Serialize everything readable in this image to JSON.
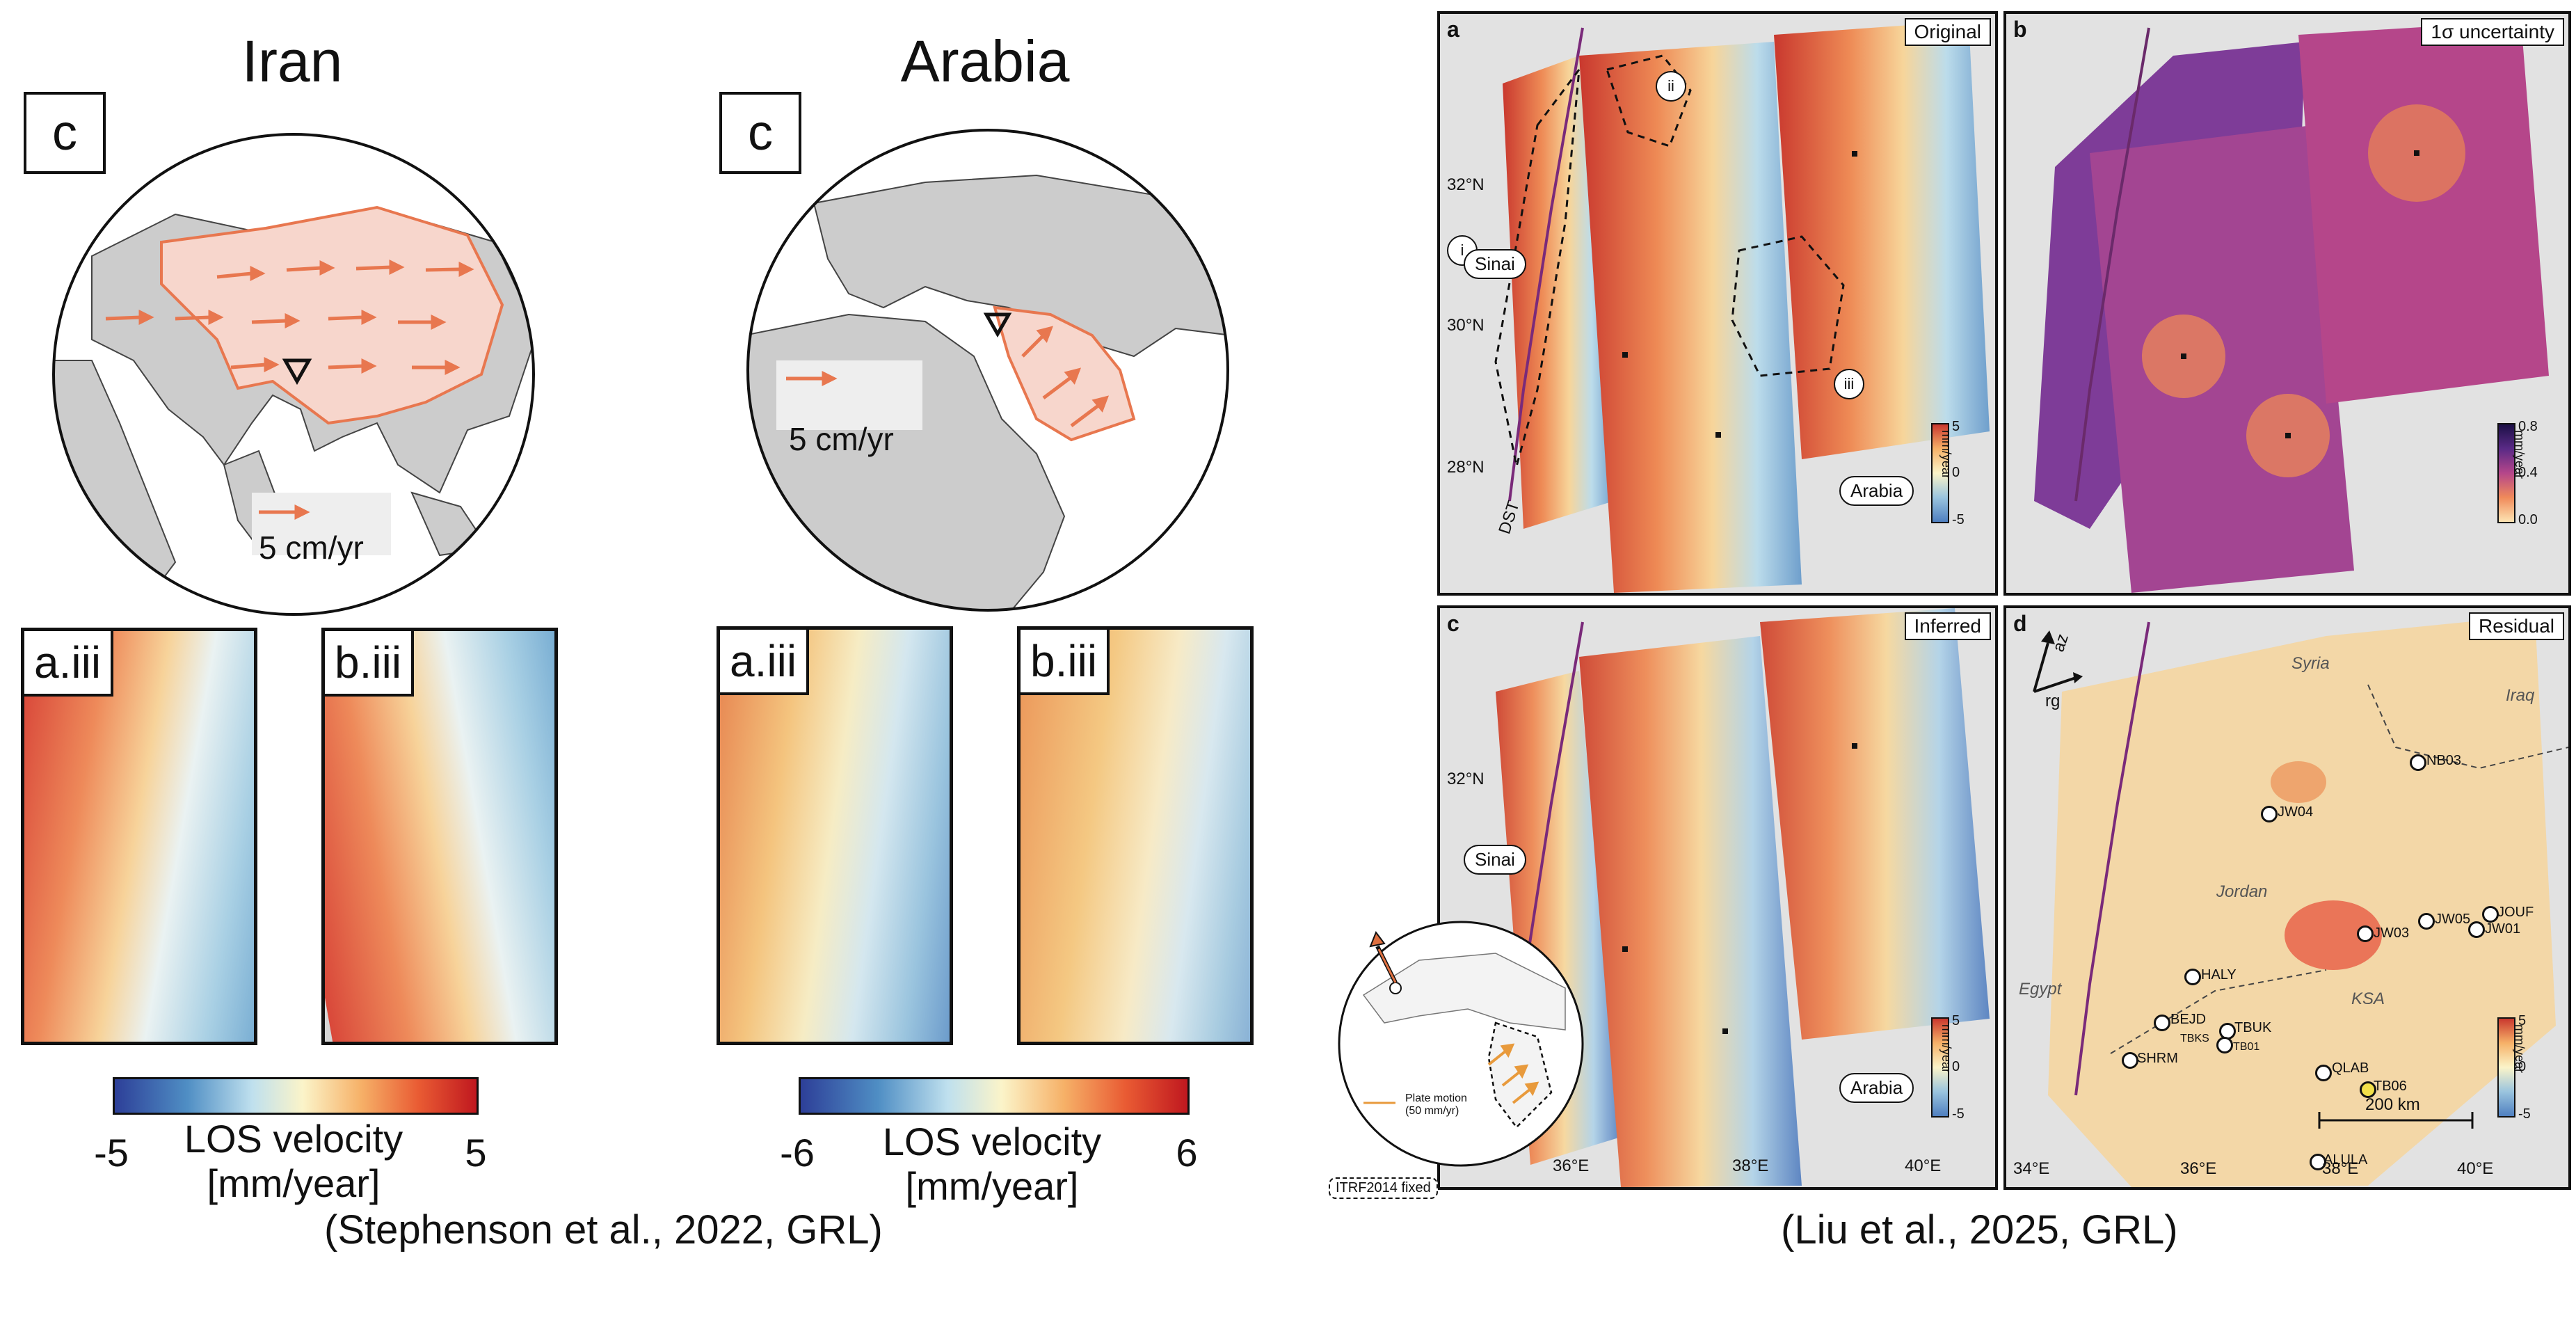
{
  "left": {
    "iran": {
      "title": "Iran",
      "panel_label": "c",
      "arrow_legend": "5 cm/yr",
      "strips": [
        "a.iii",
        "b.iii"
      ],
      "colorbar": {
        "min": "-5",
        "max": "5",
        "label_line1": "LOS velocity",
        "label_line2": "[mm/year]"
      }
    },
    "arabia": {
      "title": "Arabia",
      "panel_label": "c",
      "arrow_legend": "5 cm/yr",
      "strips": [
        "a.iii",
        "b.iii"
      ],
      "colorbar": {
        "min": "-6",
        "max": "6",
        "label_line1": "LOS velocity",
        "label_line2": "[mm/year]"
      }
    },
    "citation": "(Stephenson et al., 2022, GRL)"
  },
  "right": {
    "citation": "(Liu et al., 2025, GRL)",
    "panels": {
      "a": {
        "label": "a",
        "title": "Original",
        "lat_ticks": [
          "32°N",
          "30°N",
          "28°N"
        ],
        "markers": [
          "i",
          "ii",
          "iii"
        ],
        "pills": [
          "Sinai",
          "Arabia"
        ],
        "fault": "DST",
        "cbar": {
          "top": "5",
          "mid": "0",
          "bottom": "-5",
          "unit": "mm/year"
        }
      },
      "b": {
        "label": "b",
        "title": "1σ uncertainty",
        "cbar": {
          "top": "0.8",
          "mid": "0.4",
          "bottom": "0.0",
          "unit": "mm/year"
        }
      },
      "c": {
        "label": "c",
        "title": "Inferred",
        "lat_ticks": [
          "32°N"
        ],
        "lon_ticks": [
          "36°E",
          "38°E",
          "40°E"
        ],
        "pills": [
          "Sinai",
          "Arabia"
        ],
        "cbar": {
          "top": "5",
          "mid": "0",
          "bottom": "-5",
          "unit": "mm/year"
        }
      },
      "d": {
        "label": "d",
        "title": "Residual",
        "lon_ticks": [
          "34°E",
          "36°E",
          "38°E",
          "40°E"
        ],
        "regions": [
          "Syria",
          "Iraq",
          "Jordan",
          "Egypt",
          "KSA"
        ],
        "axis_labels": [
          "az",
          "rg"
        ],
        "stations": [
          "NB03",
          "JW04",
          "JW03",
          "JW05",
          "JOUF",
          "JW01",
          "HALY",
          "BEJD",
          "TBUK",
          "TBKS",
          "TB01",
          "SHRM",
          "QLAB",
          "TB06",
          "ALULA"
        ],
        "scale": "200 km",
        "cbar": {
          "top": "5",
          "mid": "0",
          "bottom": "-5",
          "unit": "mm/year"
        }
      }
    },
    "inset": {
      "legend": "Plate motion\n(50 mm/yr)",
      "frame": "ITRF2014 fixed"
    }
  },
  "colors": {
    "red": "#c9302c",
    "blue": "#3f6fb3",
    "salmon": "#f2a184",
    "arrow": "#e8774f",
    "orange": "#e89a3c"
  }
}
